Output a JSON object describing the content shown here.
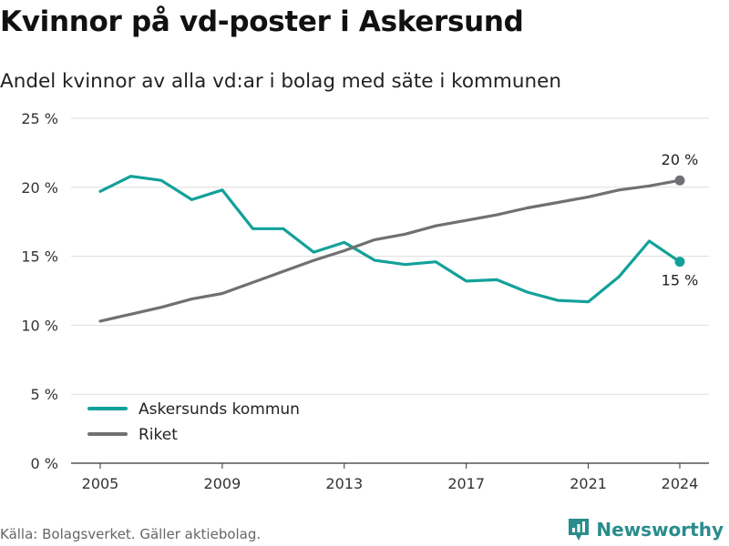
{
  "title": "Kvinnor på vd-poster i Askersund",
  "subtitle": "Andel kvinnor av alla vd:ar i bolag med säte i kommunen",
  "source": "Källa: Bolagsverket. Gäller aktiebolag.",
  "brand": "Newsworthy",
  "chart_data": {
    "type": "line",
    "title": "Kvinnor på vd-poster i Askersund",
    "subtitle": "Andel kvinnor av alla vd:ar i bolag med säte i kommunen",
    "x": [
      2005,
      2006,
      2007,
      2008,
      2009,
      2010,
      2011,
      2012,
      2013,
      2014,
      2015,
      2016,
      2017,
      2018,
      2019,
      2020,
      2021,
      2022,
      2023,
      2024
    ],
    "x_ticks": [
      2005,
      2009,
      2013,
      2017,
      2021,
      2024
    ],
    "y_ticks": [
      0,
      5,
      10,
      15,
      20,
      25
    ],
    "y_tick_labels": [
      "0 %",
      "5 %",
      "10 %",
      "15 %",
      "20 %",
      "25 %"
    ],
    "ylim": [
      0,
      25
    ],
    "xlim": [
      2005,
      2024
    ],
    "grid": true,
    "legend_position": "bottom-left",
    "series": [
      {
        "name": "Askersunds kommun",
        "color": "#12a199",
        "values": [
          19.7,
          20.8,
          20.5,
          19.1,
          19.8,
          17.0,
          17.0,
          15.3,
          16.0,
          14.7,
          14.4,
          14.6,
          13.2,
          13.3,
          12.4,
          11.8,
          11.7,
          13.5,
          16.1,
          14.6
        ],
        "end_label": "15 %"
      },
      {
        "name": "Riket",
        "color": "#707074",
        "values": [
          10.3,
          10.8,
          11.3,
          11.9,
          12.3,
          13.1,
          13.9,
          14.7,
          15.4,
          16.2,
          16.6,
          17.2,
          17.6,
          18.0,
          18.5,
          18.9,
          19.3,
          19.8,
          20.1,
          20.5
        ],
        "end_label": "20 %"
      }
    ]
  }
}
